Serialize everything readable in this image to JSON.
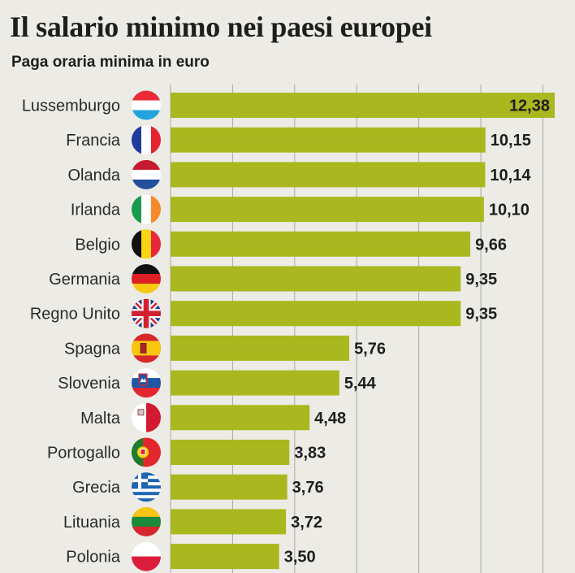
{
  "chart_data": {
    "type": "bar",
    "orientation": "horizontal",
    "title": "Il salario minimo nei paesi europei",
    "subtitle": "Paga oraria minima in euro",
    "categories": [
      "Lussemburgo",
      "Francia",
      "Olanda",
      "Irlanda",
      "Belgio",
      "Germania",
      "Regno Unito",
      "Spagna",
      "Slovenia",
      "Malta",
      "Portogallo",
      "Grecia",
      "Lituania",
      "Polonia"
    ],
    "values": [
      12.38,
      10.15,
      10.14,
      10.1,
      9.66,
      9.35,
      9.35,
      5.76,
      5.44,
      4.48,
      3.83,
      3.76,
      3.72,
      3.5
    ],
    "value_labels": [
      "12,38",
      "10,15",
      "10,14",
      "10,10",
      "9,66",
      "9,35",
      "9,35",
      "5,76",
      "5,44",
      "4,48",
      "3,83",
      "3,76",
      "3,72",
      "3,50"
    ],
    "flags": [
      "flag-luxembourg",
      "flag-france",
      "flag-netherlands",
      "flag-ireland",
      "flag-belgium",
      "flag-germany",
      "flag-united-kingdom",
      "flag-spain",
      "flag-slovenia",
      "flag-malta",
      "flag-portugal",
      "flag-greece",
      "flag-lithuania",
      "flag-poland"
    ],
    "xlim": [
      0,
      12.38
    ],
    "grid": true,
    "xlabel": "",
    "ylabel": ""
  },
  "colors": {
    "bar": "#aab81f",
    "background": "#ecebe6",
    "gridline": "#a9a9a4",
    "text": "#1e1e1e"
  }
}
